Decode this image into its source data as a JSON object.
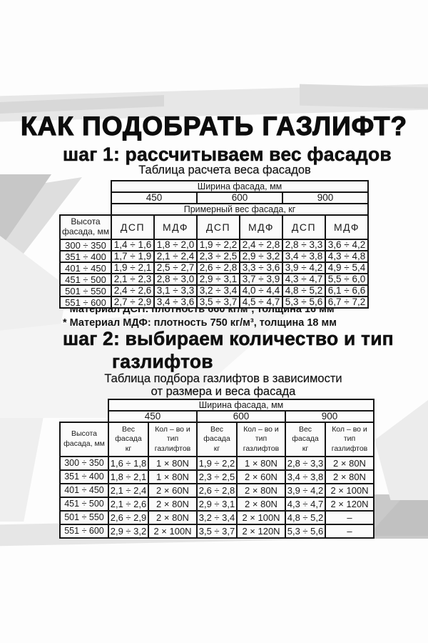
{
  "title": "КАК ПОДОБРАТЬ ГАЗЛИФТ?",
  "colors": {
    "ink": "#111111",
    "paper": "#fdfdfd",
    "texture_gray": "#d9d9d9"
  },
  "step1": {
    "heading": "шаг 1: рассчитываем вес фасадов",
    "caption": "Таблица расчета веса фасадов"
  },
  "table1": {
    "width_header": "Ширина фасада, мм",
    "widths": [
      "450",
      "600",
      "900"
    ],
    "weight_header": "Примерный вес фасада, кг",
    "height_col_header": "Высота\nфасада, мм",
    "material_cols": [
      "ДСП",
      "МДФ",
      "ДСП",
      "МДФ",
      "ДСП",
      "МДФ"
    ],
    "rows": [
      {
        "height": "300 ÷ 350",
        "values": [
          "1,4 ÷ 1,6",
          "1,8 ÷ 2,0",
          "1,9 ÷ 2,2",
          "2,4 ÷ 2,8",
          "2,8 ÷ 3,3",
          "3,6 ÷ 4,2"
        ]
      },
      {
        "height": "351 ÷ 400",
        "values": [
          "1,7 ÷ 1,9",
          "2,1 ÷ 2,4",
          "2,3 ÷ 2,5",
          "2,9 ÷ 3,2",
          "3,4 ÷ 3,8",
          "4,3 ÷ 4,8"
        ]
      },
      {
        "height": "401 ÷ 450",
        "values": [
          "1,9 ÷ 2,1",
          "2,5 ÷ 2,7",
          "2,6 ÷ 2,8",
          "3,3 ÷ 3,6",
          "3,9 ÷ 4,2",
          "4,9 ÷ 5,4"
        ]
      },
      {
        "height": "451 ÷ 500",
        "values": [
          "2,1 ÷ 2,3",
          "2,8 ÷ 3,0",
          "2,9 ÷ 3,1",
          "3,7 ÷ 3,9",
          "4,3 ÷ 4,7",
          "5,5 ÷ 6,0"
        ]
      },
      {
        "height": "501 ÷ 550",
        "values": [
          "2,4 ÷ 2,6",
          "3,1 ÷ 3,3",
          "3,2 ÷ 3,4",
          "4,0 ÷ 4,4",
          "4,8 ÷ 5,2",
          "6,1 ÷ 6,6"
        ]
      },
      {
        "height": "551 ÷ 600",
        "values": [
          "2,7 ÷ 2,9",
          "3,4 ÷ 3,6",
          "3,5 ÷ 3,7",
          "4,5 ÷ 4,7",
          "5,3 ÷ 5,6",
          "6,7 ÷ 7,2"
        ]
      }
    ]
  },
  "notes": [
    "* Материал ДСП: плотность 660 кг/м³, толщина 16 мм",
    "* Материал МДФ: плотность 750 кг/м³, толщина 18 мм"
  ],
  "step2": {
    "heading_line1": "шаг 2: выбираем количество и тип",
    "heading_line2": "газлифтов",
    "caption_line1": "Таблица подбора газлифтов в зависимости",
    "caption_line2": "от размера и веса фасада"
  },
  "table2": {
    "width_header": "Ширина фасада, мм",
    "widths": [
      "450",
      "600",
      "900"
    ],
    "height_col_header": "Высота\nфасада, мм",
    "sub_headers": [
      "Вес\nфасада\nкг",
      "Кол – во и\nтип\nгазлифтов",
      "Вес\nфасада\nкг",
      "Кол – во и\nтип\nгазлифтов",
      "Вес\nфасада\nкг",
      "Кол – во и\nтип\nгазлифтов"
    ],
    "rows": [
      {
        "height": "300 ÷ 350",
        "values": [
          "1,6 ÷ 1,8",
          "1 × 80N",
          "1,9 ÷ 2,2",
          "1 × 80N",
          "2,8 ÷ 3,3",
          "2 × 80N"
        ]
      },
      {
        "height": "351 ÷ 400",
        "values": [
          "1,8 ÷ 2,1",
          "1 × 80N",
          "2,3 ÷ 2,5",
          "2 × 60N",
          "3,4 ÷ 3,8",
          "2 × 80N"
        ]
      },
      {
        "height": "401 ÷ 450",
        "values": [
          "2,1 ÷ 2,4",
          "2 × 60N",
          "2,6 ÷ 2,8",
          "2 × 80N",
          "3,9 ÷ 4,2",
          "2 × 100N"
        ]
      },
      {
        "height": "451 ÷ 500",
        "values": [
          "2,1 ÷ 2,6",
          "2 × 80N",
          "2,9 ÷ 3,1",
          "2 × 80N",
          "4,3 ÷ 4,7",
          "2 × 120N"
        ]
      },
      {
        "height": "501 ÷ 550",
        "values": [
          "2,6 ÷ 2,9",
          "2 × 80N",
          "3,2 ÷ 3,4",
          "2 × 100N",
          "4,8 ÷ 5,2",
          "–"
        ]
      },
      {
        "height": "551 ÷ 600",
        "values": [
          "2,9 ÷ 3,2",
          "2 × 100N",
          "3,5 ÷ 3,7",
          "2 × 120N",
          "5,3 ÷ 5,6",
          "–"
        ]
      }
    ]
  }
}
